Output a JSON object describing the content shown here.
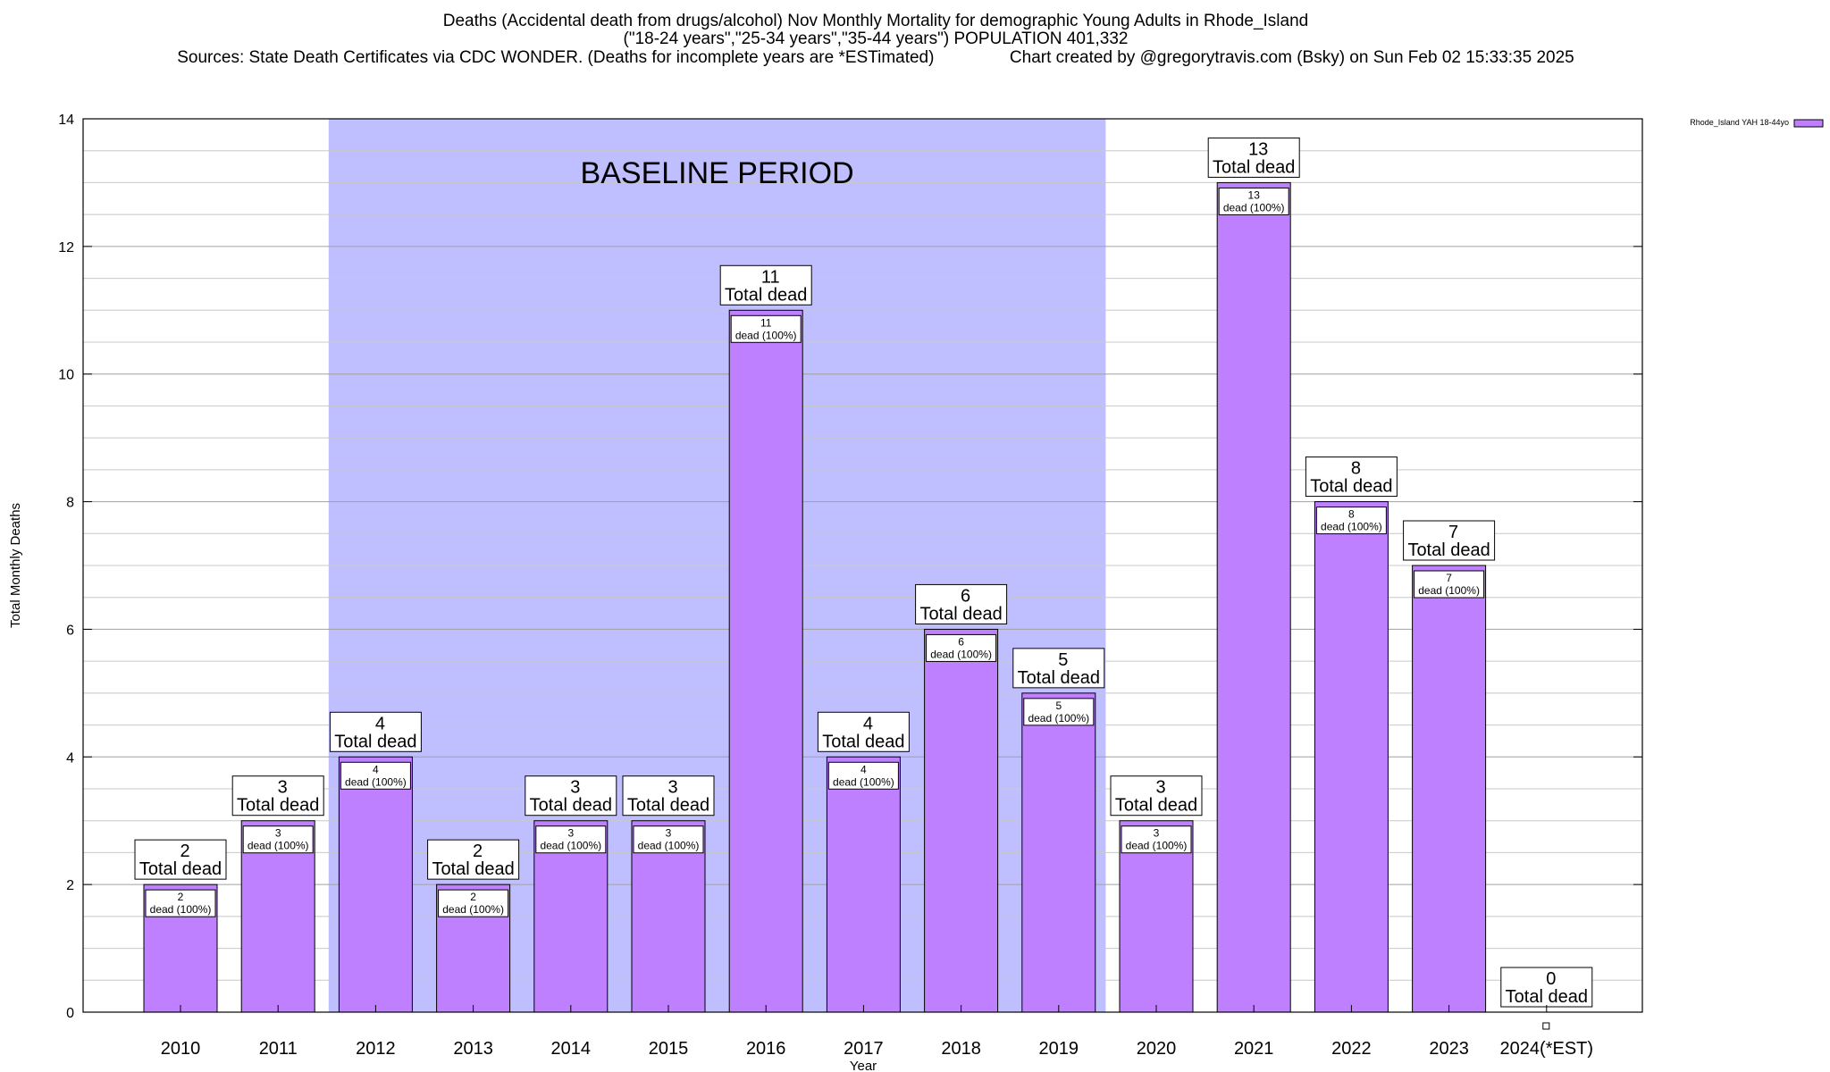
{
  "header": {
    "title_line1": "Deaths (Accidental death from drugs/alcohol) Nov Monthly Mortality for demographic Young Adults in Rhode_Island",
    "title_line2": "(\"18-24 years\",\"25-34 years\",\"35-44 years\") POPULATION 401,332",
    "title_line3": "Sources: State Death Certificates via CDC WONDER. (Deaths for incomplete years are *ESTimated)                Chart created by @gregorytravis.com (Bsky) on Sun Feb 02 15:33:35 2025"
  },
  "chart_data": {
    "type": "bar",
    "title": "Deaths (Accidental death from drugs/alcohol) Nov Monthly Mortality for demographic Young Adults in Rhode_Island",
    "xlabel": "Year",
    "ylabel": "Total Monthly Deaths",
    "ylim": [
      0,
      14
    ],
    "yticks": [
      0,
      2,
      4,
      6,
      8,
      10,
      12,
      14
    ],
    "grid": true,
    "legend_position": "top-right",
    "categories": [
      "2010",
      "2011",
      "2012",
      "2013",
      "2014",
      "2015",
      "2016",
      "2017",
      "2018",
      "2019",
      "2020",
      "2021",
      "2022",
      "2023",
      "2024(*EST)"
    ],
    "series": [
      {
        "name": "Rhode_Island YAH 18-44yo",
        "values": [
          2,
          3,
          4,
          2,
          3,
          3,
          11,
          4,
          6,
          5,
          3,
          13,
          8,
          7,
          0
        ],
        "color": "#bf80ff"
      }
    ],
    "total_label_text": "Total dead",
    "inner_label_suffix": "dead (100%)",
    "baseline_region": {
      "label": "BASELINE PERIOD",
      "from_category": "2012",
      "to_category": "2019",
      "color": "#bfbfff"
    }
  }
}
